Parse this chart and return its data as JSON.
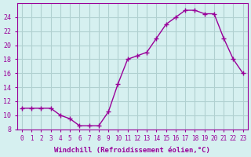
{
  "x": [
    0,
    1,
    2,
    3,
    4,
    5,
    6,
    7,
    8,
    9,
    10,
    11,
    12,
    13,
    14,
    15,
    16,
    17,
    18,
    19,
    20,
    21,
    22,
    23
  ],
  "y": [
    11,
    11,
    11,
    11,
    10,
    9.5,
    8.5,
    8.5,
    8.5,
    10.5,
    14.5,
    18,
    18.5,
    19,
    21,
    23,
    24,
    25,
    25,
    24.5,
    24.5,
    21,
    18,
    16
  ],
  "line_color": "#990099",
  "marker": "+",
  "bg_color": "#d6f0f0",
  "grid_color": "#b0d0d0",
  "xlabel": "Windchill (Refroidissement éolien,°C)",
  "xlabel_color": "#990099",
  "tick_color": "#990099",
  "ylim": [
    8,
    26
  ],
  "xlim": [
    -0.5,
    23.5
  ],
  "yticks": [
    8,
    10,
    12,
    14,
    16,
    18,
    20,
    22,
    24
  ],
  "xticks": [
    0,
    1,
    2,
    3,
    4,
    5,
    6,
    7,
    8,
    9,
    10,
    11,
    12,
    13,
    14,
    15,
    16,
    17,
    18,
    19,
    20,
    21,
    22,
    23
  ]
}
